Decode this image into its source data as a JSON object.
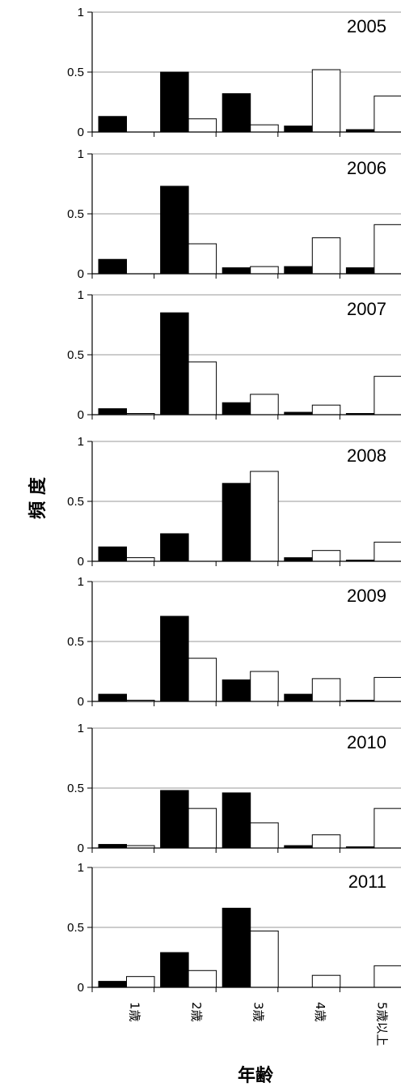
{
  "figure": {
    "ylabel": "頻 度",
    "xlabel": "年齢"
  },
  "chart_data": [
    {
      "type": "bar",
      "title": "2005",
      "categories": [
        "1歳",
        "2歳",
        "3歳",
        "4歳",
        "5歳以上"
      ],
      "ylim": [
        0,
        1
      ],
      "yticks": [
        "0",
        "0.5",
        "1"
      ],
      "series": [
        {
          "fill": "#000000",
          "values": [
            0.13,
            0.5,
            0.32,
            0.05,
            0.02
          ]
        },
        {
          "fill": "#ffffff",
          "values": [
            0.0,
            0.11,
            0.06,
            0.52,
            0.3
          ]
        }
      ]
    },
    {
      "type": "bar",
      "title": "2006",
      "categories": [
        "1歳",
        "2歳",
        "3歳",
        "4歳",
        "5歳以上"
      ],
      "ylim": [
        0,
        1
      ],
      "yticks": [
        "0",
        "0.5",
        "1"
      ],
      "series": [
        {
          "fill": "#000000",
          "values": [
            0.12,
            0.73,
            0.05,
            0.06,
            0.05
          ]
        },
        {
          "fill": "#ffffff",
          "values": [
            0.0,
            0.25,
            0.06,
            0.3,
            0.41
          ]
        }
      ]
    },
    {
      "type": "bar",
      "title": "2007",
      "categories": [
        "1歳",
        "2歳",
        "3歳",
        "4歳",
        "5歳以上"
      ],
      "ylim": [
        0,
        1
      ],
      "yticks": [
        "0",
        "0.5",
        "1"
      ],
      "series": [
        {
          "fill": "#000000",
          "values": [
            0.05,
            0.85,
            0.1,
            0.02,
            0.01
          ]
        },
        {
          "fill": "#ffffff",
          "values": [
            0.01,
            0.44,
            0.17,
            0.08,
            0.32
          ]
        }
      ]
    },
    {
      "type": "bar",
      "title": "2008",
      "categories": [
        "1歳",
        "2歳",
        "3歳",
        "4歳",
        "5歳以上"
      ],
      "ylim": [
        0,
        1
      ],
      "yticks": [
        "0",
        "0.5",
        "1"
      ],
      "series": [
        {
          "fill": "#000000",
          "values": [
            0.12,
            0.23,
            0.65,
            0.03,
            0.01
          ]
        },
        {
          "fill": "#ffffff",
          "values": [
            0.03,
            0.0,
            0.75,
            0.09,
            0.16
          ]
        }
      ]
    },
    {
      "type": "bar",
      "title": "2009",
      "categories": [
        "1歳",
        "2歳",
        "3歳",
        "4歳",
        "5歳以上"
      ],
      "ylim": [
        0,
        1
      ],
      "yticks": [
        "0",
        "0.5",
        "1"
      ],
      "series": [
        {
          "fill": "#000000",
          "values": [
            0.06,
            0.71,
            0.18,
            0.06,
            0.01
          ]
        },
        {
          "fill": "#ffffff",
          "values": [
            0.01,
            0.36,
            0.25,
            0.19,
            0.2
          ]
        }
      ]
    },
    {
      "type": "bar",
      "title": "2010",
      "categories": [
        "1歳",
        "2歳",
        "3歳",
        "4歳",
        "5歳以上"
      ],
      "ylim": [
        0,
        1
      ],
      "yticks": [
        "0",
        "0.5",
        "1"
      ],
      "series": [
        {
          "fill": "#000000",
          "values": [
            0.03,
            0.48,
            0.46,
            0.02,
            0.01
          ]
        },
        {
          "fill": "#ffffff",
          "values": [
            0.02,
            0.33,
            0.21,
            0.11,
            0.33
          ]
        }
      ]
    },
    {
      "type": "bar",
      "title": "2011",
      "categories": [
        "1歳",
        "2歳",
        "3歳",
        "4歳",
        "5歳以上"
      ],
      "ylim": [
        0,
        1
      ],
      "yticks": [
        "0",
        "0.5",
        "1"
      ],
      "series": [
        {
          "fill": "#000000",
          "values": [
            0.05,
            0.29,
            0.66,
            0.0,
            0.0
          ]
        },
        {
          "fill": "#ffffff",
          "values": [
            0.09,
            0.14,
            0.47,
            0.1,
            0.18
          ]
        }
      ]
    }
  ]
}
